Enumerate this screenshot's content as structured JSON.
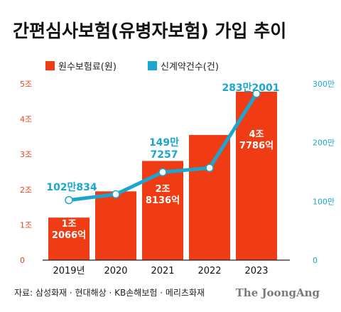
{
  "header": {
    "title": "간편심사보험(유병자보험) 가입 추이"
  },
  "chart_data": {
    "type": "bar",
    "title": "간편심사보험(유병자보험) 가입 추이",
    "categories": [
      "2019년",
      "2020",
      "2021",
      "2022",
      "2023"
    ],
    "series": [
      {
        "name": "원수보험료(원)",
        "kind": "bar",
        "axis": "left",
        "color": "#f03c14",
        "values": [
          1.2066,
          1.95,
          2.8136,
          3.55,
          4.7786
        ],
        "labels": [
          "1조\n2066억",
          null,
          "2조\n8136억",
          null,
          "4조\n7786억"
        ]
      },
      {
        "name": "신계약건수(건)",
        "kind": "line",
        "axis": "right",
        "color": "#1aa6d0",
        "values": [
          1020834,
          1120000,
          1497257,
          1570000,
          2832001
        ],
        "labels": [
          "102만834",
          null,
          "149만\n7257",
          null,
          "283만2001"
        ]
      }
    ],
    "left_axis": {
      "ylim": [
        0,
        5
      ],
      "ticks": [
        "0",
        "1조",
        "2조",
        "3조",
        "4조",
        "5조"
      ]
    },
    "right_axis": {
      "ylim": [
        0,
        3000000
      ],
      "ticks": [
        "0",
        "100만",
        "200만",
        "300만"
      ]
    },
    "legend": "top-left",
    "grid": false
  },
  "footer": {
    "source": "자료: 삼성화재 · 현대해상 · KB손해보험 · 메리츠화재",
    "brand": "The JoongAng"
  }
}
